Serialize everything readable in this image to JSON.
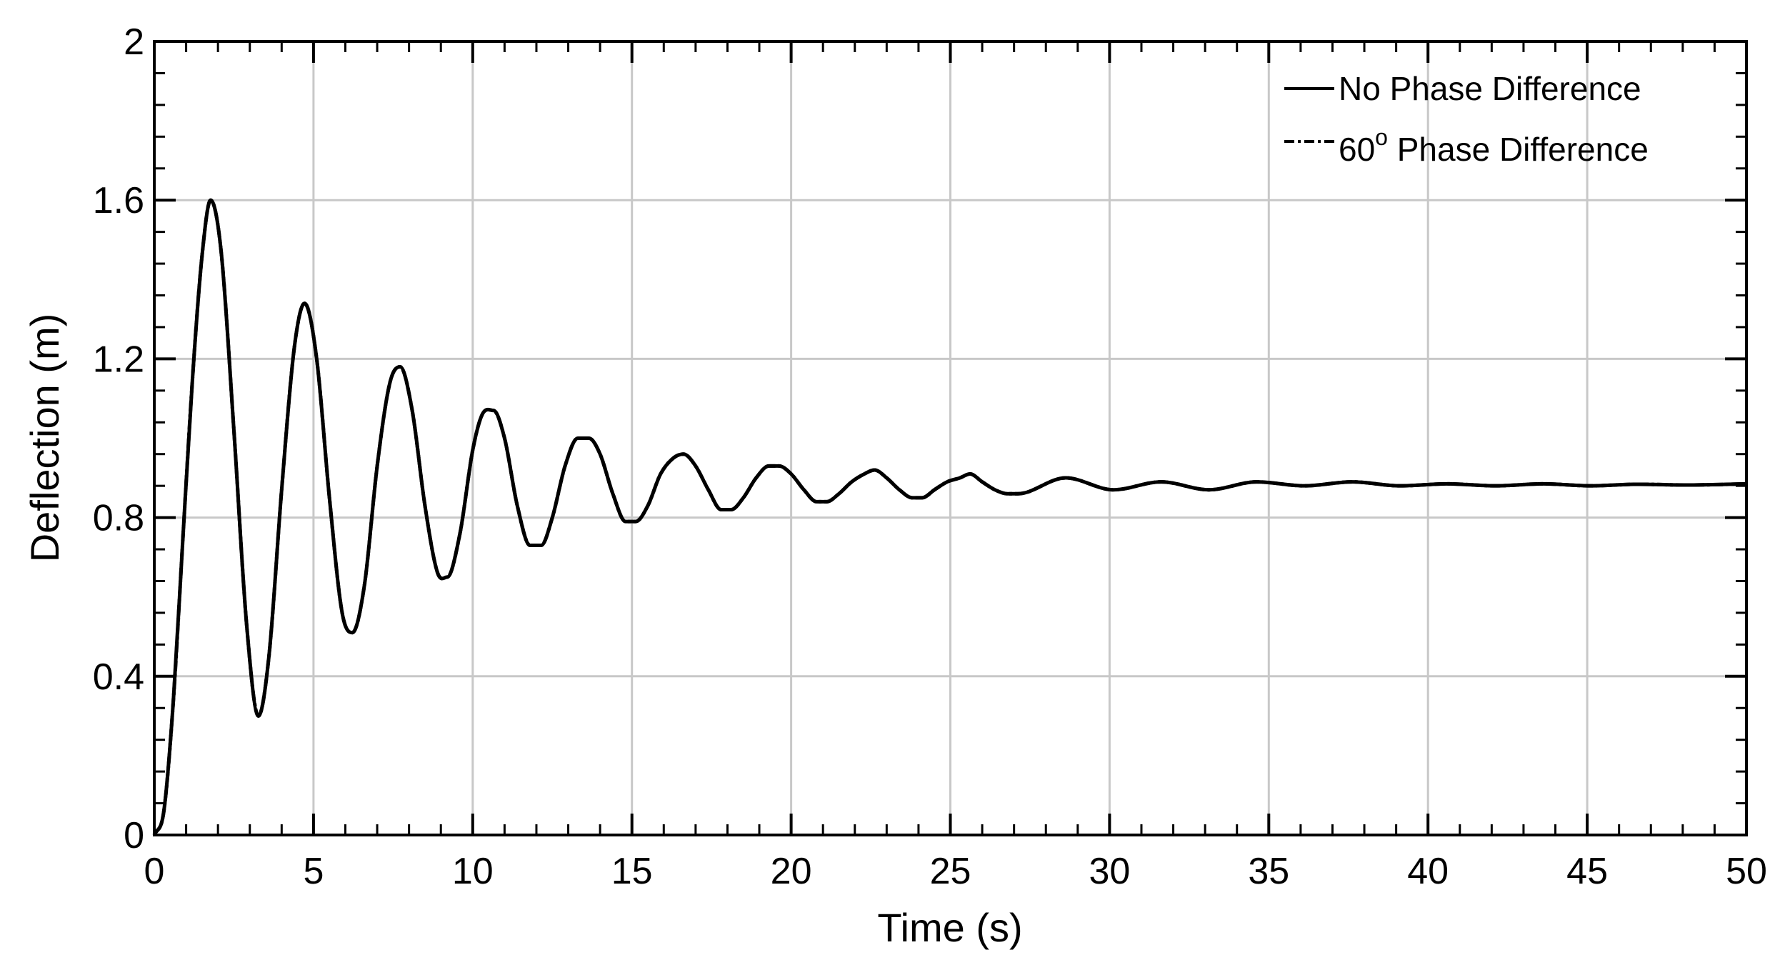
{
  "chart_data": {
    "type": "line",
    "xlabel": "Time (s)",
    "ylabel": "Deflection (m)",
    "xlim": [
      0,
      50
    ],
    "ylim": [
      0,
      2
    ],
    "xticks": [
      0,
      5,
      10,
      15,
      20,
      25,
      30,
      35,
      40,
      45,
      50
    ],
    "yticks": [
      0,
      0.4,
      0.8,
      1.2,
      1.6,
      2
    ],
    "xtick_labels": [
      "0",
      "5",
      "10",
      "15",
      "20",
      "25",
      "30",
      "35",
      "40",
      "45",
      "50"
    ],
    "ytick_labels": [
      "0",
      "0.4",
      "0.8",
      "1.2",
      "1.6",
      "2"
    ],
    "grid": true,
    "legend_position": "top-right",
    "legend": [
      {
        "name": "No Phase Difference",
        "style": "solid"
      },
      {
        "name": "60",
        "sup": "o",
        "rest": " Phase Difference",
        "style": "dash-dot"
      }
    ],
    "series": [
      {
        "name": "No Phase Difference",
        "style": "solid",
        "color": "#000000",
        "x": [
          0,
          0.3,
          0.6,
          0.9,
          1.2,
          1.5,
          1.77,
          2.1,
          2.5,
          2.9,
          3.27,
          3.6,
          4.0,
          4.4,
          4.72,
          5.1,
          5.5,
          5.9,
          6.22,
          6.6,
          7.0,
          7.4,
          7.72,
          8.1,
          8.5,
          8.9,
          9.2,
          9.6,
          10.0,
          10.3,
          10.65,
          11.0,
          11.4,
          11.8,
          12.15,
          12.5,
          12.9,
          13.3,
          13.65,
          14.0,
          14.4,
          14.8,
          15.12,
          15.5,
          15.9,
          16.3,
          16.62,
          17.0,
          17.4,
          17.8,
          18.12,
          18.5,
          18.9,
          19.3,
          19.62,
          20.0,
          20.4,
          20.8,
          21.12,
          21.5,
          21.9,
          22.3,
          22.62,
          23.0,
          23.4,
          23.8,
          24.12,
          24.5,
          24.9,
          25.3,
          25.62,
          26.0,
          26.4,
          26.8,
          27.12,
          28.62,
          30.12,
          31.62,
          33.12,
          34.62,
          36.12,
          37.62,
          39.12,
          40.62,
          42.12,
          43.62,
          45.12,
          46.62,
          48.12,
          50.0
        ],
        "y": [
          0,
          0.06,
          0.34,
          0.75,
          1.15,
          1.46,
          1.6,
          1.47,
          1.02,
          0.53,
          0.3,
          0.45,
          0.87,
          1.23,
          1.34,
          1.2,
          0.85,
          0.56,
          0.51,
          0.63,
          0.93,
          1.14,
          1.18,
          1.07,
          0.83,
          0.66,
          0.65,
          0.76,
          0.97,
          1.06,
          1.07,
          1.0,
          0.83,
          0.73,
          0.73,
          0.8,
          0.93,
          1.0,
          1.0,
          0.96,
          0.86,
          0.79,
          0.79,
          0.83,
          0.91,
          0.95,
          0.96,
          0.93,
          0.87,
          0.82,
          0.82,
          0.85,
          0.9,
          0.93,
          0.93,
          0.91,
          0.87,
          0.84,
          0.84,
          0.86,
          0.89,
          0.91,
          0.92,
          0.9,
          0.87,
          0.85,
          0.85,
          0.87,
          0.89,
          0.9,
          0.91,
          0.89,
          0.87,
          0.86,
          0.86,
          0.9,
          0.87,
          0.89,
          0.87,
          0.89,
          0.88,
          0.89,
          0.88,
          0.885,
          0.88,
          0.885,
          0.88,
          0.884,
          0.882,
          0.885
        ]
      },
      {
        "name": "60° Phase Difference",
        "style": "dash-dot",
        "color": "#000000",
        "x": [
          0,
          0.3,
          0.6,
          0.9,
          1.2,
          1.5,
          1.77,
          2.1,
          2.5,
          2.9,
          3.27,
          3.6,
          4.0,
          4.4,
          4.72,
          5.1,
          5.5,
          5.9,
          6.22,
          6.6,
          7.0,
          7.4,
          7.72,
          8.1,
          8.5,
          8.9,
          9.2,
          9.6,
          10.0,
          10.3,
          10.65,
          11.0,
          11.4,
          11.8,
          12.15,
          12.5,
          12.9,
          13.3,
          13.65,
          14.0,
          14.4,
          14.8,
          15.12,
          15.5,
          15.9,
          16.3,
          16.62,
          17.0,
          17.4,
          17.8,
          18.12,
          18.5,
          18.9,
          19.3,
          19.62,
          20.0,
          20.4,
          20.8,
          21.12,
          21.5,
          21.9,
          22.3,
          22.62,
          23.0,
          23.4,
          23.8,
          24.12,
          24.5,
          24.9,
          25.3,
          25.62,
          26.0,
          26.4,
          26.8,
          27.12,
          28.62,
          30.12,
          31.62,
          33.12,
          34.62,
          36.12,
          37.62,
          39.12,
          40.62,
          42.12,
          43.62,
          45.12,
          46.62,
          48.12,
          50.0
        ],
        "y": [
          0,
          0.06,
          0.34,
          0.75,
          1.15,
          1.46,
          1.6,
          1.47,
          1.02,
          0.53,
          0.3,
          0.45,
          0.87,
          1.23,
          1.34,
          1.2,
          0.85,
          0.56,
          0.51,
          0.63,
          0.93,
          1.14,
          1.18,
          1.07,
          0.83,
          0.66,
          0.65,
          0.76,
          0.97,
          1.06,
          1.07,
          1.0,
          0.83,
          0.73,
          0.73,
          0.8,
          0.93,
          1.0,
          1.0,
          0.96,
          0.86,
          0.79,
          0.79,
          0.83,
          0.91,
          0.95,
          0.96,
          0.93,
          0.87,
          0.82,
          0.82,
          0.85,
          0.9,
          0.93,
          0.93,
          0.91,
          0.87,
          0.84,
          0.84,
          0.86,
          0.89,
          0.91,
          0.92,
          0.9,
          0.87,
          0.85,
          0.85,
          0.87,
          0.89,
          0.9,
          0.91,
          0.89,
          0.87,
          0.86,
          0.86,
          0.9,
          0.87,
          0.89,
          0.87,
          0.89,
          0.88,
          0.89,
          0.88,
          0.885,
          0.88,
          0.885,
          0.88,
          0.884,
          0.882,
          0.885
        ]
      }
    ]
  }
}
